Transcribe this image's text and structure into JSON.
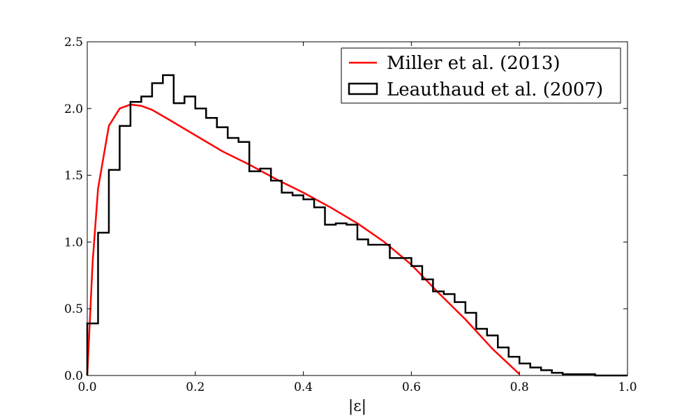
{
  "chart_data": {
    "type": "line",
    "title": "",
    "xlabel": "|ε|",
    "ylabel": "",
    "xlim": [
      0.0,
      1.0
    ],
    "ylim": [
      0.0,
      2.5
    ],
    "grid": false,
    "legend_position": "top-right",
    "x_ticks": [
      "0.0",
      "0.2",
      "0.4",
      "0.6",
      "0.8",
      "1.0"
    ],
    "y_ticks": [
      "0.0",
      "0.5",
      "1.0",
      "1.5",
      "2.0",
      "2.5"
    ],
    "x_tick_values": [
      0.0,
      0.2,
      0.4,
      0.6,
      0.8,
      1.0
    ],
    "y_tick_values": [
      0.0,
      0.5,
      1.0,
      1.5,
      2.0,
      2.5
    ],
    "series": [
      {
        "name": "Miller et al. (2013)",
        "kind": "line",
        "color": "#ff0000",
        "x": [
          0.0,
          0.01,
          0.02,
          0.04,
          0.06,
          0.08,
          0.1,
          0.12,
          0.15,
          0.2,
          0.25,
          0.3,
          0.35,
          0.4,
          0.45,
          0.5,
          0.55,
          0.6,
          0.65,
          0.7,
          0.75,
          0.8
        ],
        "y": [
          0.0,
          0.85,
          1.4,
          1.87,
          2.0,
          2.03,
          2.02,
          1.99,
          1.92,
          1.8,
          1.68,
          1.58,
          1.47,
          1.37,
          1.26,
          1.14,
          1.0,
          0.83,
          0.62,
          0.42,
          0.2,
          0.01
        ]
      },
      {
        "name": "Leauthaud et al. (2007)",
        "kind": "step-histogram",
        "color": "#000000",
        "bin_edges": [
          0.0,
          0.02,
          0.04,
          0.06,
          0.08,
          0.1,
          0.12,
          0.14,
          0.16,
          0.18,
          0.2,
          0.22,
          0.24,
          0.26,
          0.28,
          0.3,
          0.32,
          0.34,
          0.36,
          0.38,
          0.4,
          0.42,
          0.44,
          0.46,
          0.48,
          0.5,
          0.52,
          0.54,
          0.56,
          0.58,
          0.6,
          0.62,
          0.64,
          0.66,
          0.68,
          0.7,
          0.72,
          0.74,
          0.76,
          0.78,
          0.8,
          0.82,
          0.84,
          0.86,
          0.88,
          0.9,
          0.92,
          0.94,
          0.96,
          0.98,
          1.0
        ],
        "values": [
          0.39,
          1.07,
          1.54,
          1.87,
          2.05,
          2.09,
          2.19,
          2.25,
          2.04,
          2.09,
          2.0,
          1.93,
          1.86,
          1.78,
          1.75,
          1.53,
          1.55,
          1.46,
          1.37,
          1.35,
          1.32,
          1.26,
          1.13,
          1.14,
          1.13,
          1.02,
          0.98,
          0.98,
          0.88,
          0.88,
          0.82,
          0.72,
          0.63,
          0.61,
          0.55,
          0.47,
          0.35,
          0.3,
          0.21,
          0.14,
          0.09,
          0.06,
          0.04,
          0.02,
          0.01,
          0.01,
          0.01,
          0.0,
          0.0,
          0.0
        ]
      }
    ]
  }
}
